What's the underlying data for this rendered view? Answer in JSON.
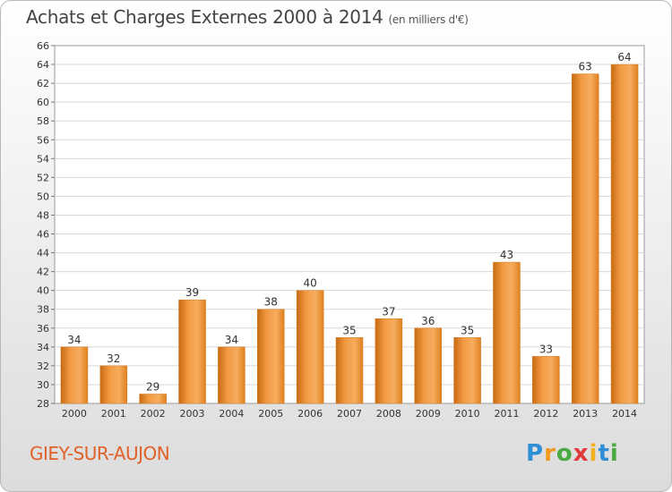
{
  "chart_data": {
    "type": "bar",
    "title": "Achats et Charges Externes 2000 à 2014",
    "unit_note": "(en milliers d'€)",
    "categories": [
      "2000",
      "2001",
      "2002",
      "2003",
      "2004",
      "2005",
      "2006",
      "2007",
      "2008",
      "2009",
      "2010",
      "2011",
      "2012",
      "2013",
      "2014"
    ],
    "values": [
      34,
      32,
      29,
      39,
      34,
      38,
      40,
      35,
      37,
      36,
      35,
      43,
      33,
      63,
      64
    ],
    "ylim": [
      28,
      66
    ],
    "yticks": [
      28,
      30,
      32,
      34,
      36,
      38,
      40,
      42,
      44,
      46,
      48,
      50,
      52,
      54,
      56,
      58,
      60,
      62,
      64,
      66
    ],
    "grid": true,
    "bar_color": "#f29a43",
    "xlabel": "",
    "ylabel": ""
  },
  "footer": {
    "commune": "GIEY-SUR-AUJON",
    "logo_letters": [
      {
        "char": "P",
        "color": "#2f8fd6"
      },
      {
        "char": "r",
        "color": "#f29a1f"
      },
      {
        "char": "o",
        "color": "#49a942"
      },
      {
        "char": "x",
        "color": "#e03a3a"
      },
      {
        "char": "i",
        "color": "#f2b01f"
      },
      {
        "char": "t",
        "color": "#2f8fd6"
      },
      {
        "char": "i",
        "color": "#49a942"
      }
    ]
  }
}
